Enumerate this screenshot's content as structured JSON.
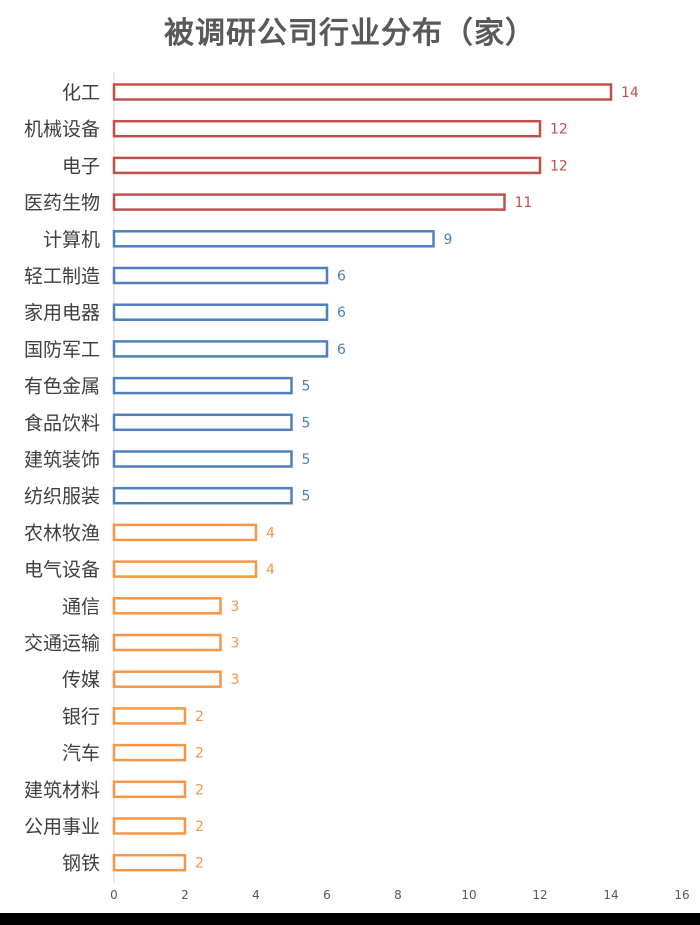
{
  "title": "被调研公司行业分布（家）",
  "chart_data": {
    "type": "bar",
    "orientation": "horizontal",
    "title": "被调研公司行业分布（家）",
    "xlim": [
      0,
      16
    ],
    "xticks": [
      0,
      2,
      4,
      6,
      8,
      10,
      12,
      14,
      16
    ],
    "grid": false,
    "legend": "none",
    "categories": [
      "化工",
      "机械设备",
      "电子",
      "医药生物",
      "计算机",
      "轻工制造",
      "家用电器",
      "国防军工",
      "有色金属",
      "食品饮料",
      "建筑装饰",
      "纺织服装",
      "农林牧渔",
      "电气设备",
      "通信",
      "交通运输",
      "传媒",
      "银行",
      "汽车",
      "建筑材料",
      "公用事业",
      "钢铁"
    ],
    "values": [
      14,
      12,
      12,
      11,
      9,
      6,
      6,
      6,
      5,
      5,
      5,
      5,
      4,
      4,
      3,
      3,
      3,
      2,
      2,
      2,
      2,
      2
    ],
    "bar_colors": [
      "#c0504d",
      "#c0504d",
      "#c0504d",
      "#c0504d",
      "#4f81bd",
      "#4f81bd",
      "#4f81bd",
      "#4f81bd",
      "#4f81bd",
      "#4f81bd",
      "#4f81bd",
      "#4f81bd",
      "#f79646",
      "#f79646",
      "#f79646",
      "#f79646",
      "#f79646",
      "#f79646",
      "#f79646",
      "#f79646",
      "#f79646",
      "#f79646"
    ],
    "bar_style": "outline"
  }
}
